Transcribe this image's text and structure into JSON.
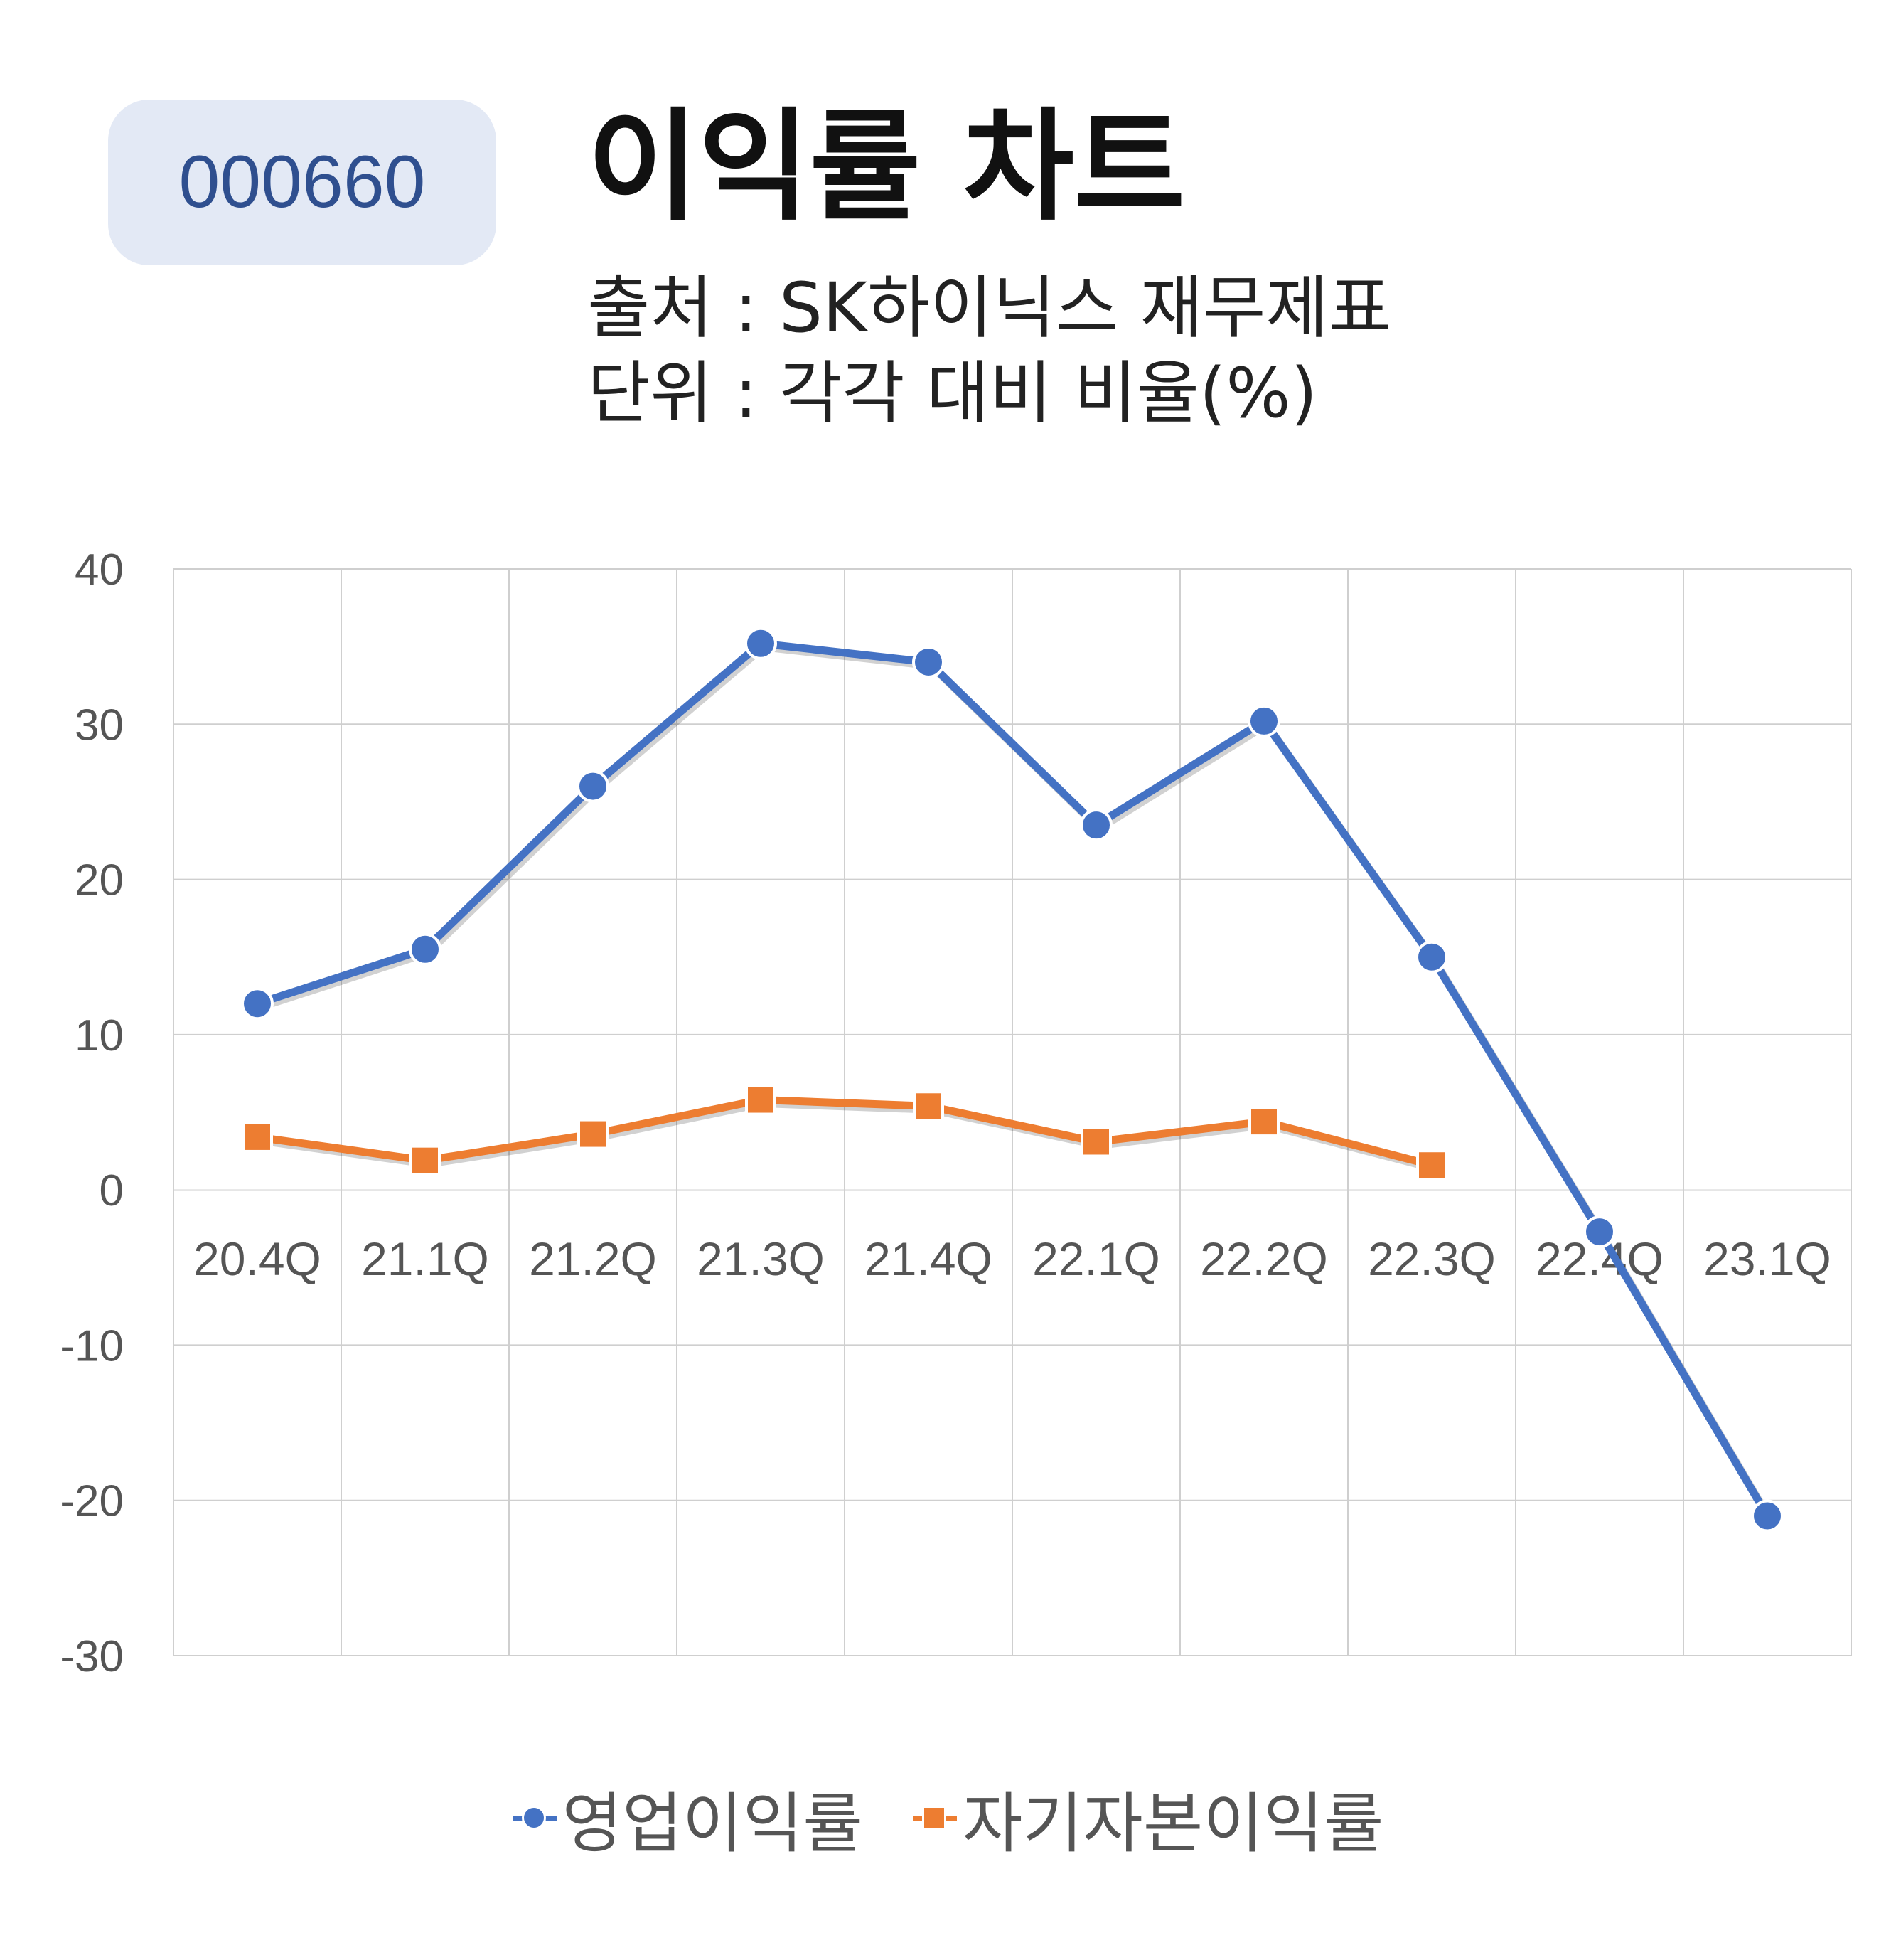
{
  "header": {
    "code": "000660",
    "title": "이익률 차트",
    "source": "출처 : SK하이닉스 재무제표",
    "unit": "단위 : 각각 대비 비율(%)"
  },
  "chart_data": {
    "type": "line",
    "categories": [
      "20.4Q",
      "21.1Q",
      "21.2Q",
      "21.3Q",
      "21.4Q",
      "22.1Q",
      "22.2Q",
      "22.3Q",
      "22.4Q",
      "23.1Q"
    ],
    "ylim": [
      -30,
      40
    ],
    "yticks": [
      40,
      30,
      20,
      10,
      0,
      -10,
      -20,
      -30
    ],
    "grid": true,
    "legend_position": "bottom",
    "series": [
      {
        "name": "영업이익률",
        "color": "#4472c4",
        "marker": "circle",
        "values": [
          12.0,
          15.5,
          26.0,
          35.2,
          34.0,
          23.5,
          30.2,
          15.0,
          -2.7,
          -21.0
        ]
      },
      {
        "name": "자기자본이익률",
        "color": "#ed7d31",
        "marker": "square",
        "values": [
          3.4,
          1.9,
          3.6,
          5.8,
          5.4,
          3.1,
          4.4,
          1.6,
          null,
          null
        ]
      }
    ]
  }
}
